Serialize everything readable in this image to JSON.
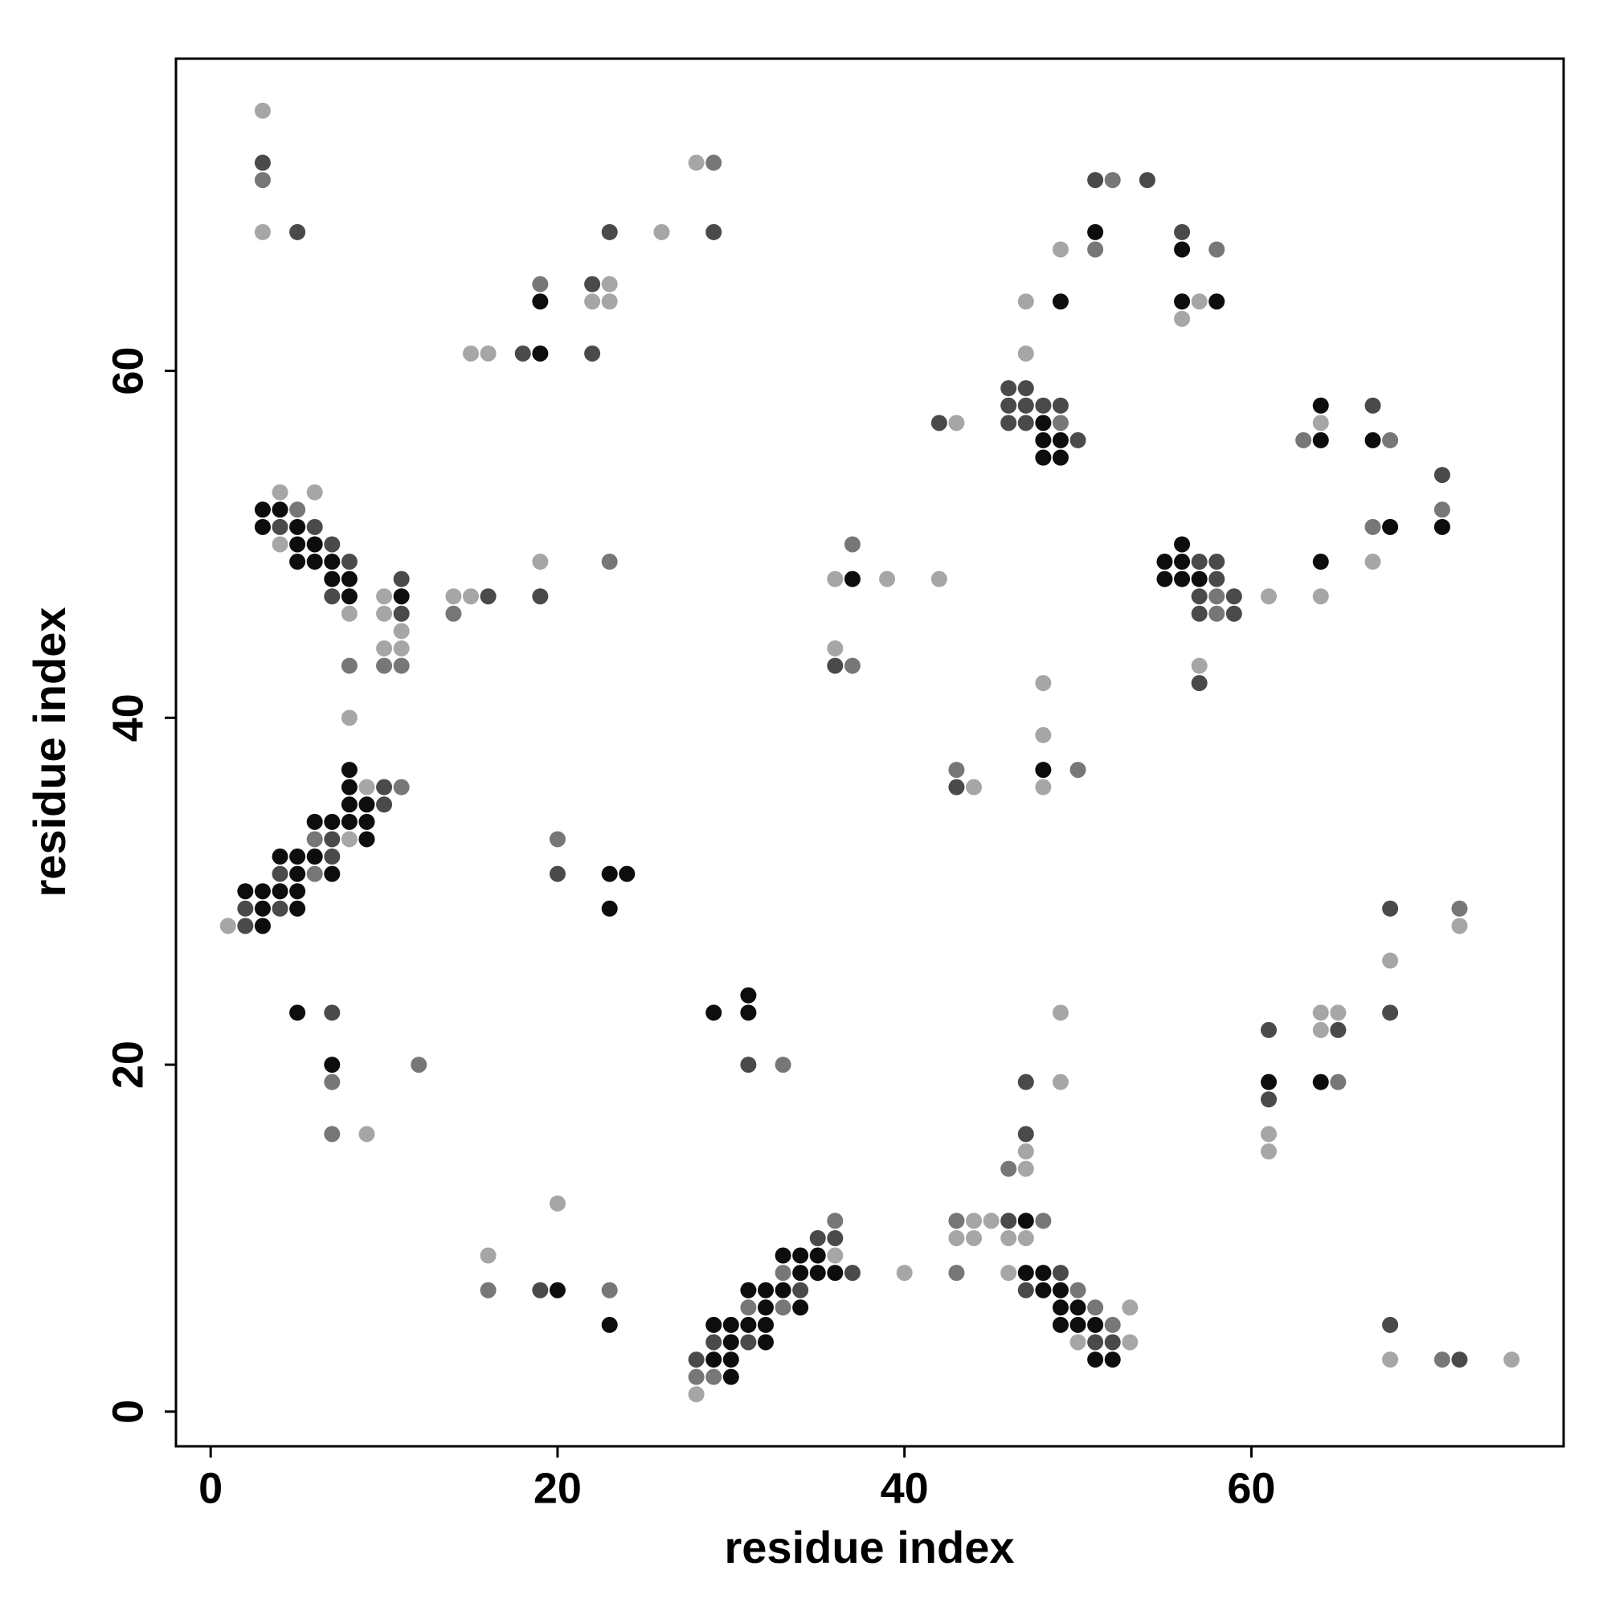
{
  "chart_data": {
    "type": "scatter",
    "x_label": "residue index",
    "y_label": "residue index",
    "xlim": [
      -2,
      78
    ],
    "ylim": [
      -2,
      78
    ],
    "xticks": [
      0,
      20,
      40,
      60
    ],
    "yticks": [
      0,
      20,
      40,
      60
    ],
    "grid": false,
    "series": [
      {
        "color": "#0d0d0d",
        "x": [
          51,
          56,
          19,
          49,
          56,
          58,
          19,
          64,
          48,
          48,
          49,
          64,
          67,
          48,
          49,
          3,
          4,
          3,
          5,
          68,
          71,
          5,
          6,
          56,
          5,
          6,
          7,
          55,
          56,
          64,
          7,
          8,
          37,
          55,
          56,
          57,
          8,
          11,
          8,
          48,
          8,
          8,
          9,
          6,
          7,
          8,
          9,
          9,
          4,
          5,
          6,
          5,
          7,
          23,
          24,
          2,
          3,
          4,
          5,
          3,
          5,
          23,
          3,
          31,
          5,
          29,
          31,
          7,
          61,
          64,
          47,
          33,
          34,
          35,
          34,
          35,
          36,
          47,
          48,
          20,
          31,
          32,
          33,
          48,
          49,
          32,
          34,
          49,
          50,
          23,
          29,
          30,
          31,
          32,
          49,
          50,
          51,
          30,
          32,
          29,
          30,
          51,
          52,
          30
        ],
        "y": [
          68,
          67,
          64,
          64,
          64,
          64,
          61,
          58,
          57,
          56,
          56,
          56,
          56,
          55,
          55,
          52,
          52,
          51,
          51,
          51,
          51,
          50,
          50,
          50,
          49,
          49,
          49,
          49,
          49,
          49,
          48,
          48,
          48,
          48,
          48,
          48,
          47,
          47,
          37,
          37,
          36,
          35,
          35,
          34,
          34,
          34,
          34,
          33,
          32,
          32,
          32,
          31,
          31,
          31,
          31,
          30,
          30,
          30,
          30,
          29,
          29,
          29,
          28,
          24,
          23,
          23,
          23,
          20,
          19,
          19,
          11,
          9,
          9,
          9,
          8,
          8,
          8,
          8,
          8,
          7,
          7,
          7,
          7,
          7,
          7,
          6,
          6,
          6,
          6,
          5,
          5,
          5,
          5,
          5,
          5,
          5,
          5,
          4,
          4,
          3,
          3,
          3,
          3,
          2
        ]
      },
      {
        "color": "#4a4a4a",
        "x": [
          3,
          51,
          54,
          5,
          23,
          29,
          56,
          22,
          18,
          22,
          46,
          47,
          46,
          47,
          48,
          49,
          67,
          42,
          46,
          47,
          50,
          71,
          4,
          6,
          7,
          8,
          57,
          58,
          11,
          58,
          7,
          16,
          19,
          57,
          59,
          11,
          57,
          59,
          36,
          57,
          10,
          43,
          10,
          7,
          7,
          4,
          20,
          2,
          4,
          68,
          2,
          7,
          68,
          61,
          65,
          31,
          47,
          61,
          47,
          46,
          35,
          36,
          37,
          49,
          19,
          34,
          47,
          68,
          29,
          31,
          51,
          52,
          28,
          72
        ],
        "y": [
          72,
          71,
          71,
          68,
          68,
          68,
          68,
          65,
          61,
          61,
          59,
          59,
          58,
          58,
          58,
          58,
          58,
          57,
          57,
          57,
          56,
          54,
          51,
          51,
          50,
          49,
          49,
          49,
          48,
          48,
          47,
          47,
          47,
          47,
          47,
          46,
          46,
          46,
          43,
          42,
          36,
          36,
          35,
          33,
          32,
          31,
          31,
          29,
          29,
          29,
          28,
          23,
          23,
          22,
          22,
          20,
          19,
          18,
          16,
          11,
          10,
          10,
          8,
          8,
          7,
          7,
          7,
          5,
          4,
          4,
          4,
          4,
          3,
          3
        ]
      },
      {
        "color": "#777777",
        "x": [
          3,
          29,
          52,
          51,
          58,
          19,
          49,
          63,
          68,
          5,
          71,
          67,
          37,
          23,
          58,
          14,
          58,
          8,
          10,
          11,
          37,
          43,
          50,
          11,
          6,
          20,
          6,
          72,
          12,
          33,
          7,
          65,
          7,
          46,
          36,
          43,
          48,
          33,
          43,
          16,
          23,
          50,
          31,
          33,
          51,
          52,
          71,
          28,
          29
        ],
        "y": [
          71,
          72,
          71,
          67,
          67,
          65,
          57,
          56,
          56,
          52,
          52,
          51,
          50,
          49,
          47,
          46,
          46,
          43,
          43,
          43,
          43,
          37,
          37,
          36,
          33,
          33,
          31,
          29,
          20,
          20,
          19,
          19,
          16,
          14,
          11,
          11,
          11,
          8,
          8,
          7,
          7,
          7,
          6,
          6,
          6,
          5,
          3,
          2,
          2
        ]
      },
      {
        "color": "#a6a6a6",
        "x": [
          3,
          28,
          3,
          26,
          49,
          23,
          22,
          23,
          47,
          57,
          56,
          15,
          16,
          47,
          43,
          64,
          4,
          6,
          4,
          19,
          67,
          36,
          39,
          42,
          10,
          14,
          15,
          61,
          64,
          8,
          10,
          11,
          10,
          11,
          36,
          57,
          48,
          8,
          48,
          9,
          44,
          48,
          8,
          1,
          72,
          68,
          49,
          64,
          65,
          64,
          49,
          9,
          61,
          47,
          61,
          47,
          20,
          44,
          45,
          43,
          44,
          46,
          47,
          16,
          36,
          40,
          46,
          53,
          50,
          53,
          68,
          75,
          28
        ],
        "y": [
          75,
          72,
          68,
          68,
          67,
          65,
          64,
          64,
          64,
          64,
          63,
          61,
          61,
          61,
          57,
          57,
          53,
          53,
          50,
          49,
          49,
          48,
          48,
          48,
          47,
          47,
          47,
          47,
          47,
          46,
          46,
          45,
          44,
          44,
          44,
          43,
          42,
          40,
          39,
          36,
          36,
          36,
          33,
          28,
          28,
          26,
          23,
          23,
          23,
          22,
          19,
          16,
          16,
          15,
          15,
          14,
          12,
          11,
          11,
          10,
          10,
          10,
          10,
          9,
          9,
          8,
          8,
          6,
          4,
          4,
          3,
          3,
          1
        ]
      }
    ]
  }
}
